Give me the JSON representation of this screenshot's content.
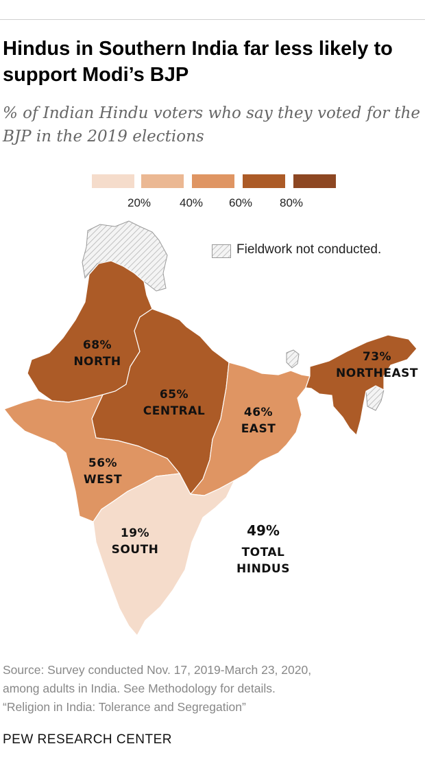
{
  "title": "Hindus in Southern India far less likely to support Modi’s BJP",
  "subtitle": "% of Indian Hindu voters who say they voted for the BJP in the 2019 elections",
  "legend": {
    "ticks": [
      "20%",
      "40%",
      "60%",
      "80%"
    ],
    "colors": [
      "#f5dccb",
      "#ebb893",
      "#df9563",
      "#ac5b27",
      "#8d4722"
    ]
  },
  "not_conducted_note": "Fieldwork not conducted.",
  "regions": {
    "north": {
      "value": "68%",
      "name": "NORTH",
      "color": "#ac5b27"
    },
    "central": {
      "value": "65%",
      "name": "CENTRAL",
      "color": "#ac5b27"
    },
    "east": {
      "value": "46%",
      "name": "EAST",
      "color": "#df9563"
    },
    "northeast": {
      "value": "73%",
      "name": "NORTHEAST",
      "color": "#ac5b27"
    },
    "west": {
      "value": "56%",
      "name": "WEST",
      "color": "#df9563"
    },
    "south": {
      "value": "19%",
      "name": "SOUTH",
      "color": "#f5dccb"
    }
  },
  "total": {
    "value": "49%",
    "line1": "TOTAL",
    "line2": "HINDUS"
  },
  "source": {
    "line1": "Source: Survey conducted Nov. 17, 2019-March 23, 2020,",
    "line2": "among adults in India. See Methodology for details.",
    "line3": "“Religion in India: Tolerance and Segregation”"
  },
  "footer": "PEW RESEARCH CENTER"
}
